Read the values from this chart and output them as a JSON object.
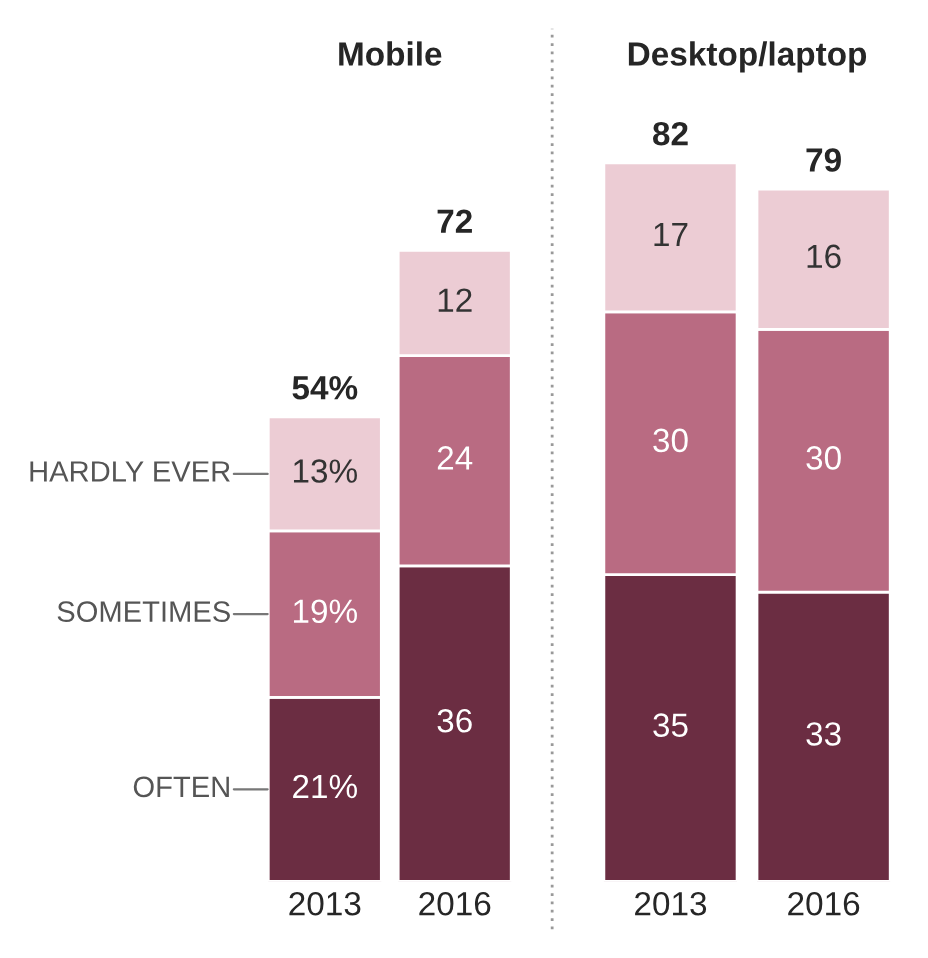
{
  "chart_data": [
    {
      "type": "bar",
      "title": "Mobile",
      "categories": [
        "2013",
        "2016"
      ],
      "stacked": true,
      "tick_labels": "x",
      "totals": [
        "54%",
        "72"
      ],
      "series": [
        {
          "name": "OFTEN",
          "color": "#6b2d42",
          "values": [
            21,
            36
          ],
          "value_labels": [
            "21%",
            "36"
          ]
        },
        {
          "name": "SOMETIMES",
          "color": "#b96b82",
          "values": [
            19,
            24
          ],
          "value_labels": [
            "19%",
            "24"
          ]
        },
        {
          "name": "HARDLY EVER",
          "color": "#ecccd4",
          "values": [
            13,
            12
          ],
          "value_labels": [
            "13%",
            "12"
          ]
        }
      ]
    },
    {
      "type": "bar",
      "title": "Desktop/laptop",
      "categories": [
        "2013",
        "2016"
      ],
      "stacked": true,
      "tick_labels": "x",
      "totals": [
        "82",
        "79"
      ],
      "series": [
        {
          "color": "#6b2d42",
          "values": [
            35,
            33
          ],
          "value_labels": [
            "35",
            "33"
          ]
        },
        {
          "color": "#b96b82",
          "values": [
            30,
            30
          ],
          "value_labels": [
            "30",
            "30"
          ]
        },
        {
          "color": "#ecccd4",
          "values": [
            17,
            16
          ],
          "value_labels": [
            "17",
            "16"
          ]
        }
      ]
    }
  ]
}
